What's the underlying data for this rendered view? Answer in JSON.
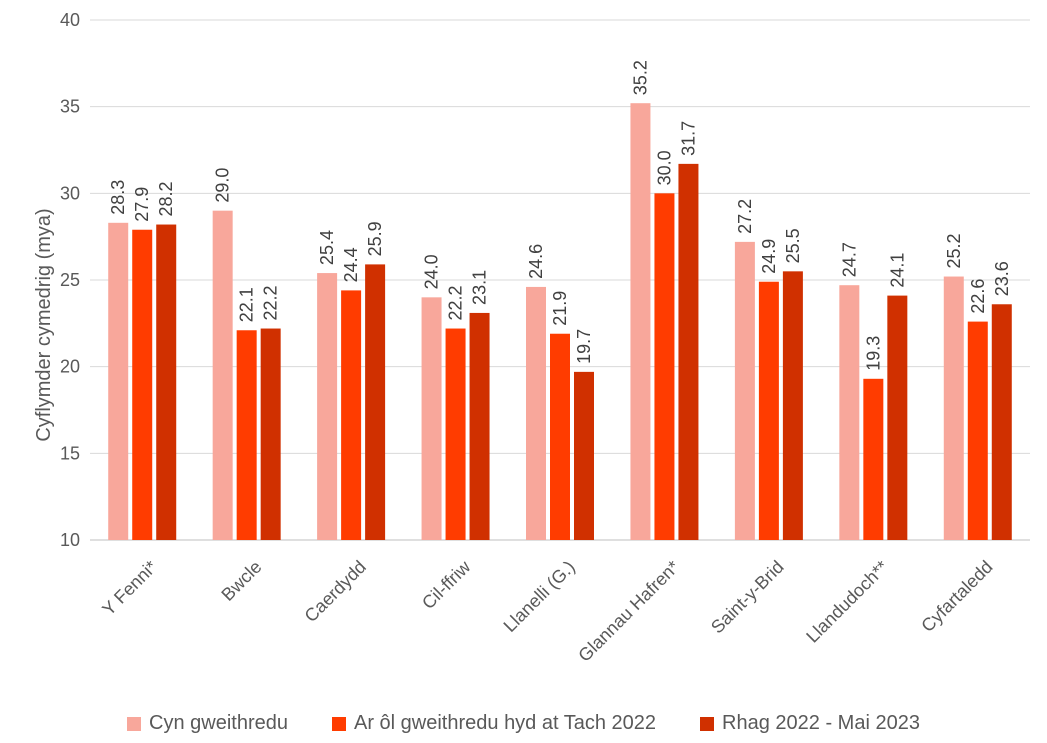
{
  "chart_data": {
    "type": "bar",
    "ylabel": "Cyflymder cymedrig (mya)",
    "xlabel": "",
    "ylim": [
      10,
      40
    ],
    "yticks": [
      10,
      15,
      20,
      25,
      30,
      35,
      40
    ],
    "grid": true,
    "legend_position": "bottom",
    "categories": [
      "Y Fenni*",
      "Bwcle",
      "Caerdydd",
      "Cil-ffriw",
      "Llanelli (G.)",
      "Glannau Hafren*",
      "Saint-y-Brid",
      "Llandudoch**",
      "Cyfartaledd"
    ],
    "series": [
      {
        "name": "Cyn gweithredu",
        "color": "#F8A79B",
        "values": [
          28.3,
          29.0,
          25.4,
          24.0,
          24.6,
          35.2,
          27.2,
          24.7,
          25.2
        ]
      },
      {
        "name": "Ar ôl gweithredu hyd at Tach 2022",
        "color": "#FF3C00",
        "values": [
          27.9,
          22.1,
          24.4,
          22.2,
          21.9,
          30.0,
          24.9,
          19.3,
          22.6
        ]
      },
      {
        "name": "Rhag 2022 - Mai 2023",
        "color": "#D03000",
        "values": [
          28.2,
          22.2,
          25.9,
          23.1,
          19.7,
          31.7,
          25.5,
          24.1,
          23.6
        ]
      }
    ]
  }
}
